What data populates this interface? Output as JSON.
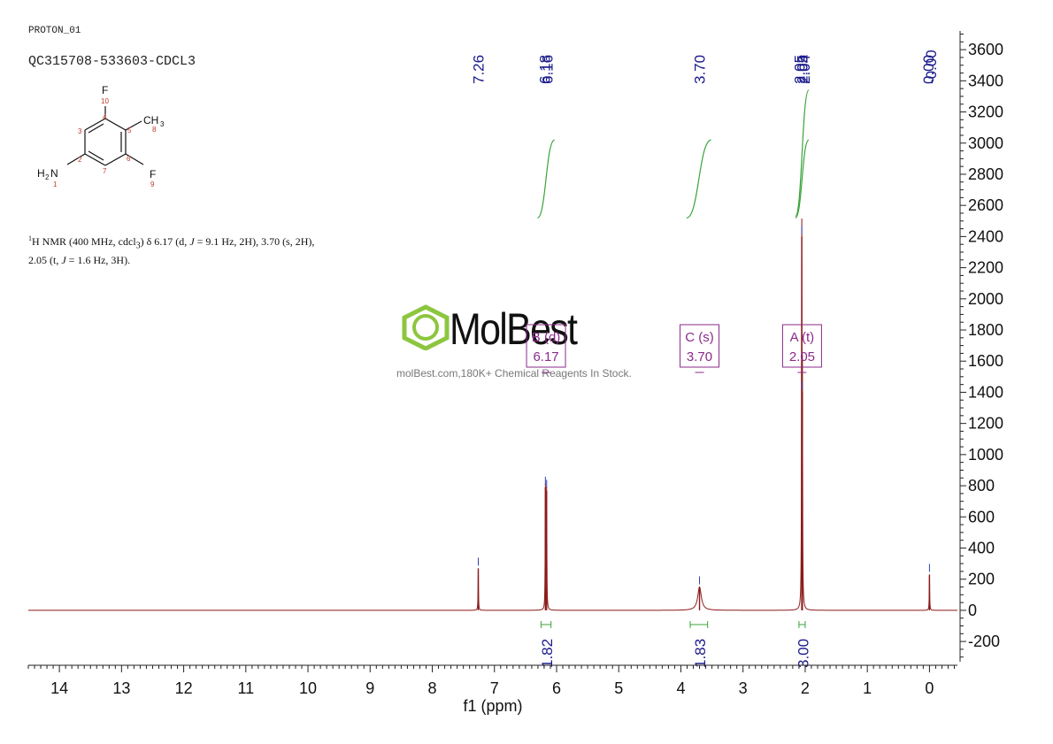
{
  "header": {
    "experiment": "PROTON_01",
    "sample": "QC315708-533603-CDCL3"
  },
  "description": {
    "prefix": "H NMR (400 MHz, cdcl",
    "sup": "1",
    "sub3": "3",
    "line1_rest": ") δ 6.17 (d, ",
    "j1": "J",
    "j1_val": " = 9.1 Hz, 2H), 3.70 (s, 2H),",
    "line2_start": "2.05 (t, ",
    "j2": "J",
    "j2_val": " = 1.6 Hz, 3H)."
  },
  "structure": {
    "atoms": [
      "F",
      "10",
      "CH",
      "3",
      "8",
      "H",
      "2",
      "N",
      "1",
      "F",
      "9"
    ],
    "ring_numbers": [
      "4",
      "5",
      "6",
      "7",
      "2",
      "3"
    ]
  },
  "watermark": {
    "brand": "MolBest",
    "tagline": "molBest.com,180K+ Chemical Reagents In Stock."
  },
  "colors": {
    "spectrum": "#8b1a1a",
    "integral": "#3aa33a",
    "peak_label": "#1a1a8a",
    "multiplet": "#8b2a8b",
    "watermark_green": "#8cc63f"
  },
  "chart_data": {
    "type": "line",
    "xlabel": "f1 (ppm)",
    "xlim": [
      14.5,
      -0.45
    ],
    "ylim": [
      -330,
      3720
    ],
    "x_ticks": [
      14,
      13,
      12,
      11,
      10,
      9,
      8,
      7,
      6,
      5,
      4,
      3,
      2,
      1,
      0
    ],
    "y_ticks": [
      3600,
      3400,
      3200,
      3000,
      2800,
      2600,
      2400,
      2200,
      2000,
      1800,
      1600,
      1400,
      1200,
      1000,
      800,
      600,
      400,
      200,
      0,
      -200
    ],
    "peak_labels": [
      "7.26",
      "6.18",
      "6.16",
      "3.70",
      "2.05",
      "2.05",
      "2.04",
      "0.00",
      "-0.00"
    ],
    "peaks": [
      {
        "ppm": 7.26,
        "height": 270
      },
      {
        "ppm": 6.18,
        "height": 790
      },
      {
        "ppm": 6.16,
        "height": 770
      },
      {
        "ppm": 3.7,
        "height": 150
      },
      {
        "ppm": 2.055,
        "height": 2400
      },
      {
        "ppm": 2.045,
        "height": 1400
      },
      {
        "ppm": 0.0,
        "height": 230
      }
    ],
    "integrals": [
      {
        "label": "1.82",
        "from": 6.25,
        "to": 6.09
      },
      {
        "label": "1.83",
        "from": 3.85,
        "to": 3.57
      },
      {
        "label": "3.00",
        "from": 2.1,
        "to": 2.0
      }
    ],
    "multiplets": [
      {
        "label": "B (d)",
        "shift": "6.17"
      },
      {
        "label": "C (s)",
        "shift": "3.70"
      },
      {
        "label": "A (t)",
        "shift": "2.05"
      }
    ]
  }
}
